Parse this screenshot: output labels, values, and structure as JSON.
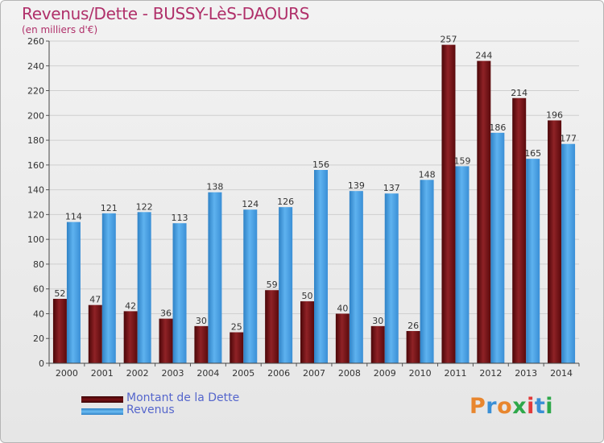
{
  "title": "Revenus/Dette - BUSSY-LèS-DAOURS",
  "subtitle": "(en milliers d'€)",
  "legend": [
    {
      "label": "Montant de la Dette",
      "color": "#6b0d10"
    },
    {
      "label": "Revenus",
      "color": "#4aa3e6"
    }
  ],
  "logo": {
    "text": "Proxiti",
    "colors": [
      "#e8862e",
      "#3a8fd6",
      "#e8862e",
      "#2ea84a",
      "#e23a3a",
      "#3a8fd6",
      "#2ea84a"
    ]
  },
  "chart_data": {
    "type": "bar",
    "categories": [
      "2000",
      "2001",
      "2002",
      "2003",
      "2004",
      "2005",
      "2006",
      "2007",
      "2008",
      "2009",
      "2010",
      "2011",
      "2012",
      "2013",
      "2014"
    ],
    "series": [
      {
        "name": "Montant de la Dette",
        "values": [
          52,
          47,
          42,
          36,
          30,
          25,
          59,
          50,
          40,
          30,
          26,
          257,
          244,
          214,
          196
        ],
        "color": "#7a1216"
      },
      {
        "name": "Revenus",
        "values": [
          114,
          121,
          122,
          113,
          138,
          124,
          126,
          156,
          139,
          137,
          148,
          159,
          186,
          165,
          177
        ],
        "color": "#4aa3e6"
      }
    ],
    "ylim": [
      0,
      260
    ],
    "yticks": [
      0,
      20,
      40,
      60,
      80,
      100,
      120,
      140,
      160,
      180,
      200,
      220,
      240,
      260
    ],
    "grid": true,
    "legend_position": "bottom-left"
  }
}
